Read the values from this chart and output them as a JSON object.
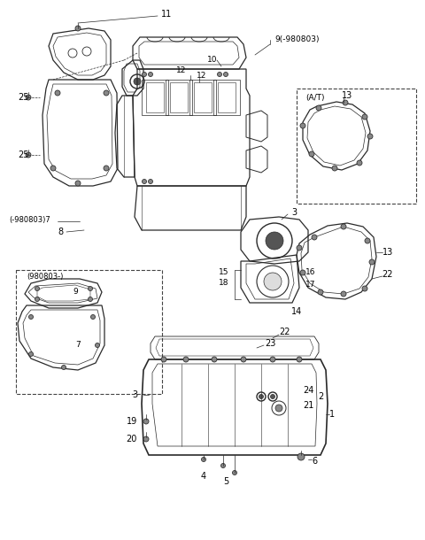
{
  "bg_color": "#ffffff",
  "lc": "#2a2a2a",
  "lc_light": "#555555",
  "fig_w": 4.8,
  "fig_h": 6.1,
  "dpi": 100
}
